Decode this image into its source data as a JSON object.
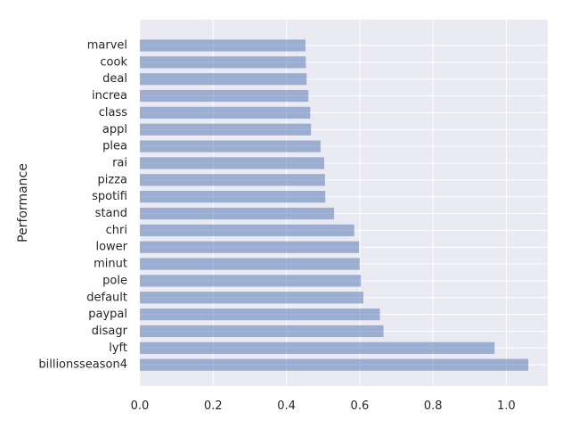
{
  "chart_data": {
    "type": "bar",
    "orientation": "horizontal",
    "categories": [
      "marvel",
      "cook",
      "deal",
      "increa",
      "class",
      "appl",
      "plea",
      "rai",
      "pizza",
      "spotifi",
      "stand",
      "chri",
      "lower",
      "minut",
      "pole",
      "default",
      "paypal",
      "disagr",
      "lyft",
      "billionsseason4"
    ],
    "values": [
      0.452,
      0.453,
      0.455,
      0.46,
      0.465,
      0.467,
      0.493,
      0.503,
      0.505,
      0.506,
      0.53,
      0.585,
      0.598,
      0.6,
      0.603,
      0.61,
      0.655,
      0.665,
      0.968,
      1.06
    ],
    "xlabel": "",
    "ylabel": "Performance",
    "title": "",
    "xlim": [
      0,
      1.113
    ],
    "xticks": [
      "0.0",
      "0.2",
      "0.4",
      "0.6",
      "0.8",
      "1.0"
    ],
    "grid": true,
    "style": {
      "background": "#eaeaf2",
      "bar_color": "#4c72b0",
      "bar_alpha": 0.5,
      "grid_color": "#ffffff"
    }
  }
}
